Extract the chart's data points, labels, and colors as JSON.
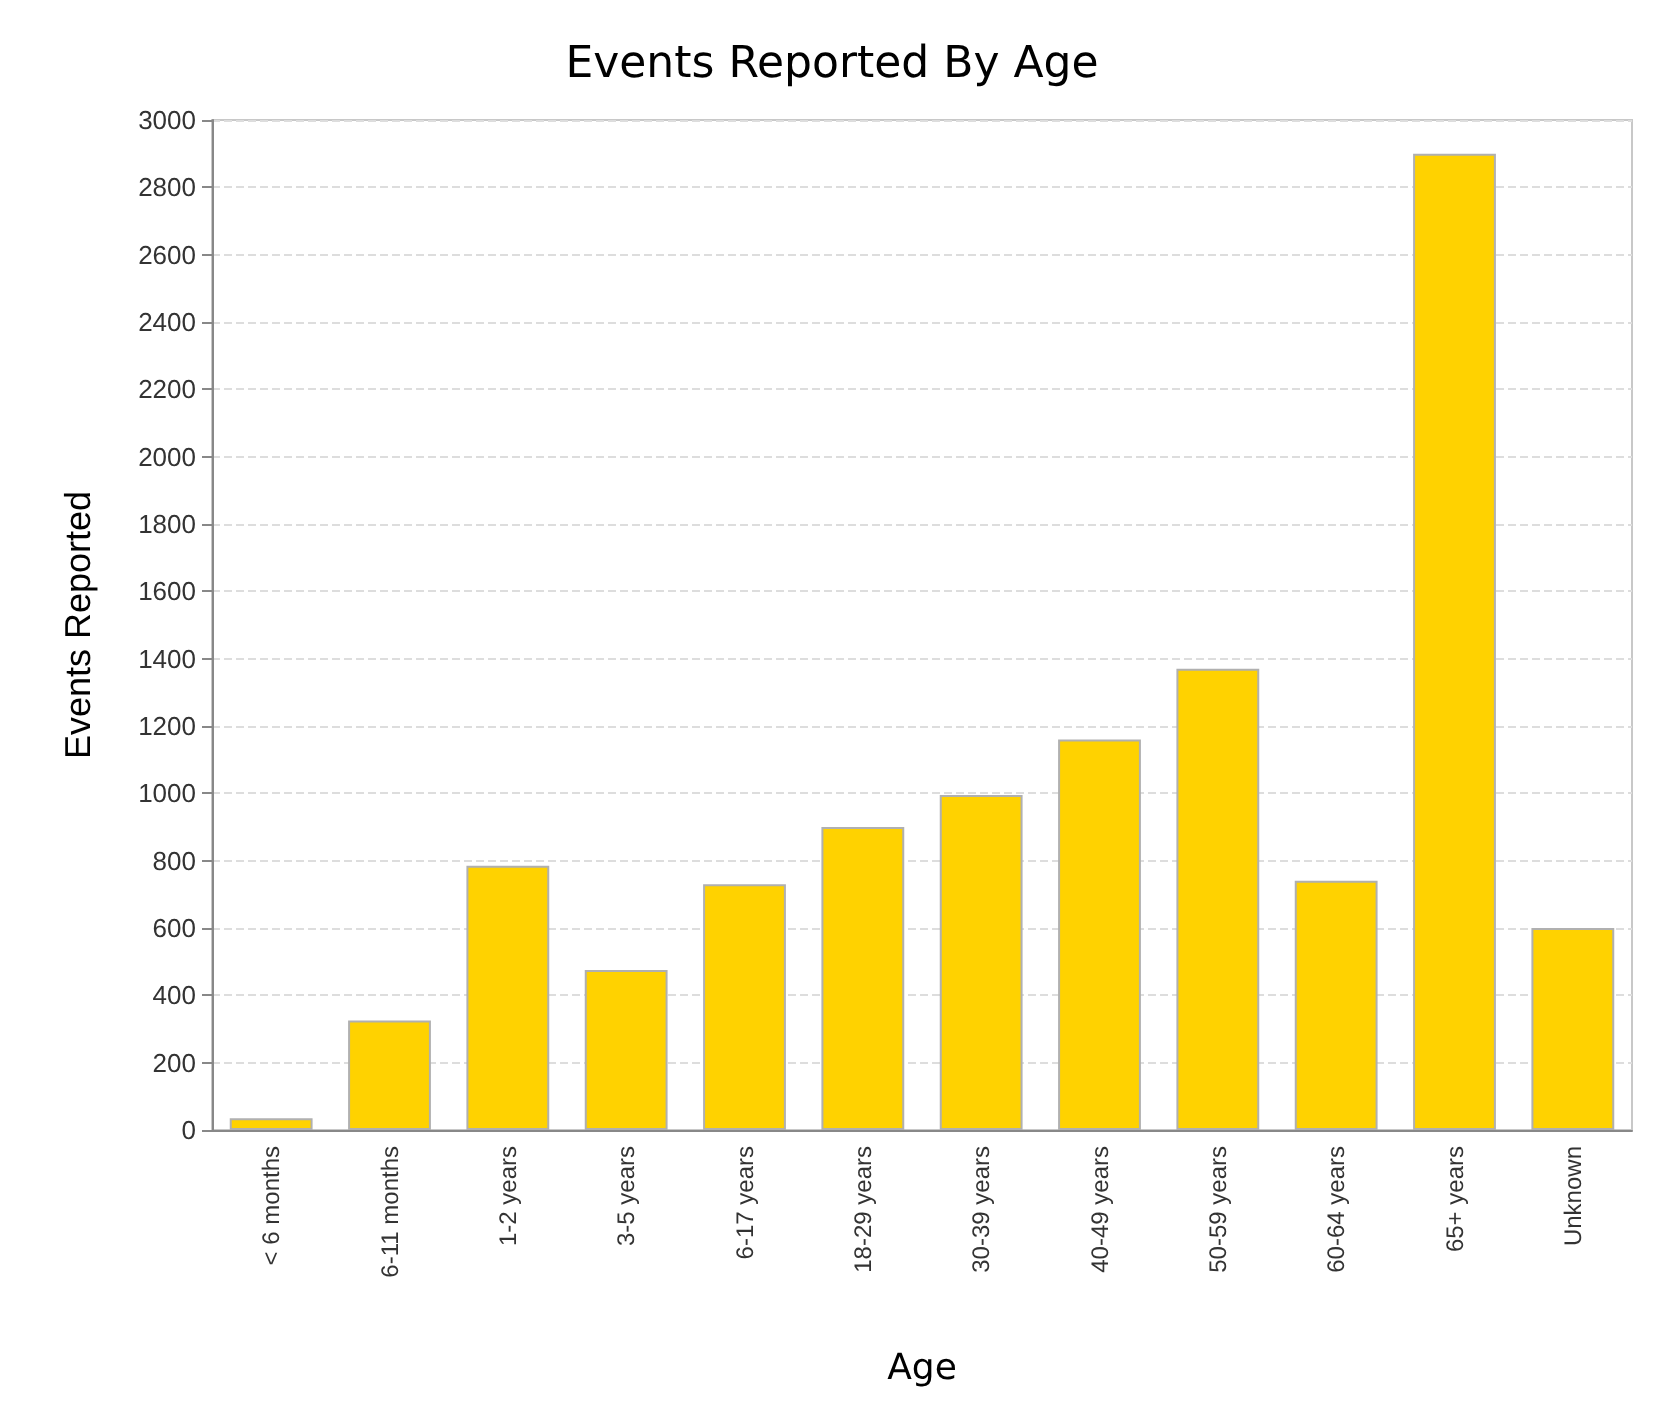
{
  "chart_data": {
    "type": "bar",
    "title": "Events Reported By Age",
    "xlabel": "Age",
    "ylabel": "Events Reported",
    "categories": [
      "< 6 months",
      "6-11 months",
      "1-2 years",
      "3-5 years",
      "6-17 years",
      "18-29 years",
      "30-39 years",
      "40-49 years",
      "50-59 years",
      "60-64 years",
      "65+ years",
      "Unknown"
    ],
    "values": [
      35,
      325,
      785,
      475,
      730,
      900,
      995,
      1160,
      1370,
      740,
      2900,
      600
    ],
    "color": "#ffd200",
    "ylim": [
      0,
      3000
    ],
    "yticks": [
      0,
      200,
      400,
      600,
      800,
      1000,
      1200,
      1400,
      1600,
      1800,
      2000,
      2200,
      2400,
      2600,
      2800,
      3000
    ],
    "grid": "y"
  }
}
